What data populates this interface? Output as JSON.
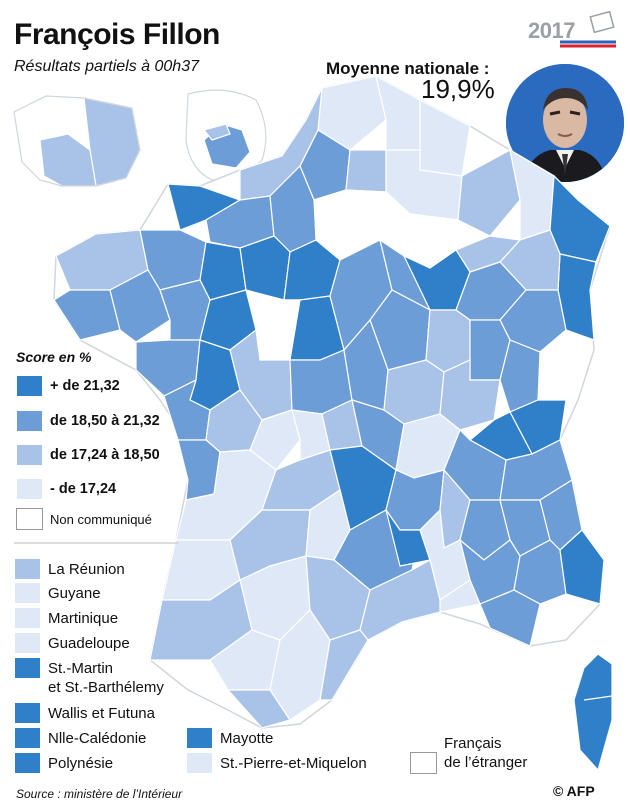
{
  "header": {
    "title": "François Fillon",
    "subtitle": "Résultats partiels à 00h37",
    "year_badge": "2017",
    "national_average_label": "Moyenne nationale :",
    "national_average_value": "19,9%"
  },
  "colors": {
    "over_21_32": "#2f80c9",
    "18_50_to_21_32": "#6d9dd6",
    "17_24_to_18_50": "#a9c3e8",
    "under_17_24": "#dfe8f6",
    "not_communicated": "#ffffff",
    "border": "#cfd6de"
  },
  "legend": {
    "title": "Score en %",
    "classes": [
      {
        "label": "+ de 21,32",
        "color": "#2f80c9"
      },
      {
        "label": "de 18,50 à 21,32",
        "color": "#6d9dd6"
      },
      {
        "label": "de 17,24 à 18,50",
        "color": "#a9c3e8"
      },
      {
        "label": "- de 17,24",
        "color": "#dfe8f6"
      },
      {
        "label": "Non communiqué",
        "color": "#ffffff"
      }
    ]
  },
  "overseas": [
    {
      "label": "La Réunion",
      "color": "#a9c3e8"
    },
    {
      "label": "Guyane",
      "color": "#dfe8f6"
    },
    {
      "label": "Martinique",
      "color": "#dfe8f6"
    },
    {
      "label": "Guadeloupe",
      "color": "#dfe8f6"
    },
    {
      "label": "St.-Martin\net St.-Barthélemy",
      "color": "#2f80c9"
    },
    {
      "label": "Wallis et Futuna",
      "color": "#2f80c9"
    },
    {
      "label": "Nlle-Calédonie",
      "color": "#2f80c9"
    },
    {
      "label": "Polynésie",
      "color": "#2f80c9"
    }
  ],
  "overseas_right": [
    {
      "label": "Mayotte",
      "color": "#2f80c9"
    },
    {
      "label": "St.-Pierre-et-Miquelon",
      "color": "#dfe8f6"
    },
    {
      "label": "Français\nde l’étranger",
      "color": "#ffffff"
    }
  ],
  "footer": {
    "source": "Source : ministère de l’Intérieur",
    "credit": "© AFP"
  }
}
